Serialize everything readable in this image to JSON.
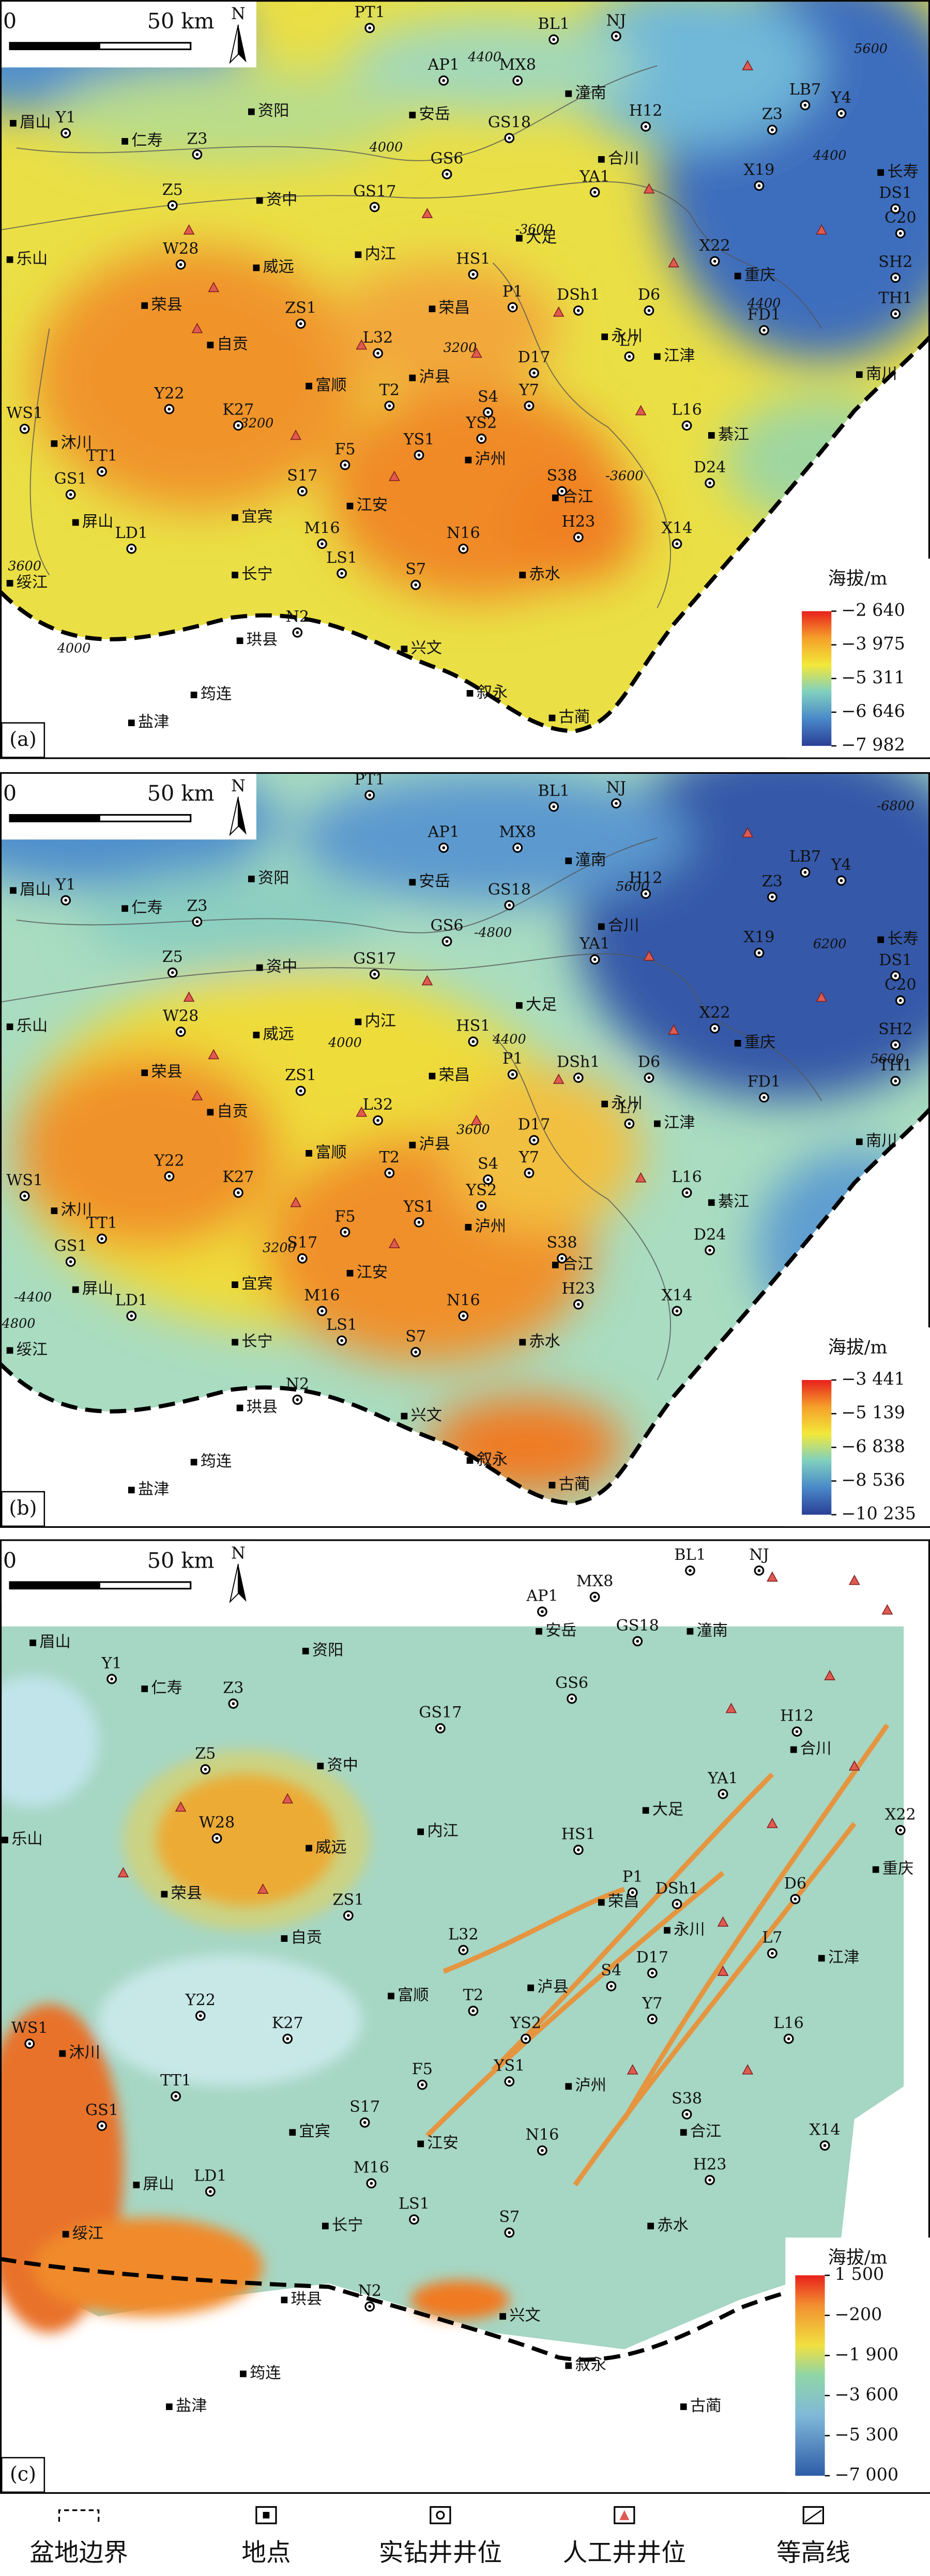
{
  "panels": [
    {
      "label": "(a)",
      "scale_zero": "0",
      "scale_text": "50 km",
      "north": "N",
      "places": [
        "眉山",
        "仁寿",
        "资阳",
        "安岳",
        "潼南",
        "合川",
        "资中",
        "内江",
        "威远",
        "乐山",
        "荣县",
        "自贡",
        "大足",
        "永川",
        "江津",
        "重庆",
        "长寿",
        "南川",
        "荣昌",
        "富顺",
        "泸县",
        "泸州",
        "宜宾",
        "江安",
        "长宁",
        "合江",
        "綦江",
        "赤水",
        "屏山",
        "沐川",
        "绥江",
        "珙县",
        "筠连",
        "盐津",
        "兴文",
        "叙永",
        "古蔺"
      ],
      "wells": [
        "PT1",
        "BL1",
        "NJ",
        "AP1",
        "MX8",
        "GS18",
        "GS6",
        "H12",
        "YA1",
        "LB7",
        "Y4",
        "Z3",
        "X19",
        "DS1",
        "C20",
        "SH2",
        "TH1",
        "FD1",
        "X22",
        "D6",
        "L7",
        "DSh1",
        "P1",
        "HS1",
        "D17",
        "Y7",
        "S4",
        "YS2",
        "YS1",
        "T2",
        "L32",
        "ZS1",
        "K27",
        "Y22",
        "WS1",
        "TT1",
        "GS1",
        "LD1",
        "S17",
        "F5",
        "M16",
        "LS1",
        "S7",
        "N16",
        "N2",
        "S38",
        "H23",
        "X14",
        "D24",
        "L16",
        "Z5",
        "W28",
        "Y1",
        "Z3",
        "GS17"
      ],
      "contours": [
        "4400",
        "4000",
        "-3600",
        "3200",
        "3600",
        "4000",
        "-3600",
        "4400",
        "4400",
        "-3200",
        "5600"
      ],
      "colorbar": {
        "title": "海拔/m",
        "ticks": [
          {
            "value": -2640,
            "label": "−2 640"
          },
          {
            "value": -3975,
            "label": "−3 975"
          },
          {
            "value": -5311,
            "label": "−5 311"
          },
          {
            "value": -6646,
            "label": "−6 646"
          },
          {
            "value": -7982,
            "label": "−7 982"
          }
        ]
      }
    },
    {
      "label": "(b)",
      "scale_zero": "0",
      "scale_text": "50 km",
      "north": "N",
      "places": [
        "眉山",
        "仁寿",
        "资阳",
        "安岳",
        "潼南",
        "合川",
        "资中",
        "内江",
        "威远",
        "乐山",
        "荣县",
        "自贡",
        "大足",
        "永川",
        "江津",
        "重庆",
        "长寿",
        "南川",
        "荣昌",
        "富顺",
        "泸县",
        "泸州",
        "宜宾",
        "江安",
        "长宁",
        "合江",
        "綦江",
        "赤水",
        "屏山",
        "沐川",
        "绥江",
        "珙县",
        "筠连",
        "盐津",
        "兴文",
        "叙永",
        "古蔺"
      ],
      "wells": [
        "PT1",
        "BL1",
        "NJ",
        "AP1",
        "MX8",
        "GS18",
        "GS6",
        "H12",
        "YA1",
        "LB7",
        "Y4",
        "Z3",
        "X19",
        "DS1",
        "C20",
        "SH2",
        "TH1",
        "FD1",
        "X22",
        "D6",
        "L7",
        "DSh1",
        "P1",
        "HS1",
        "D17",
        "Y7",
        "S4",
        "YS2",
        "YS1",
        "T2",
        "L32",
        "ZS1",
        "K27",
        "Y22",
        "WS1",
        "TT1",
        "GS1",
        "LD1",
        "S17",
        "F5",
        "M16",
        "LS1",
        "S7",
        "N16",
        "N2",
        "S38",
        "H23",
        "X14",
        "D24",
        "L16",
        "Z5",
        "W28",
        "Y1",
        "Z3",
        "GS17"
      ],
      "contours": [
        "-4800",
        "4000",
        "4400",
        "3600",
        "3200",
        "-4400",
        "-4800",
        "5600",
        "6200",
        "-6800",
        "5600"
      ],
      "colorbar": {
        "title": "海拔/m",
        "ticks": [
          {
            "value": -3441,
            "label": "−3 441"
          },
          {
            "value": -5139,
            "label": "−5 139"
          },
          {
            "value": -6838,
            "label": "−6 838"
          },
          {
            "value": -8536,
            "label": "−8 536"
          },
          {
            "value": -10235,
            "label": "−10 235"
          }
        ]
      }
    },
    {
      "label": "(c)",
      "scale_zero": "0",
      "scale_text": "50 km",
      "north": "N",
      "places": [
        "眉山",
        "仁寿",
        "资阳",
        "安岳",
        "潼南",
        "合川",
        "资中",
        "乐山",
        "威远",
        "内江",
        "大足",
        "重庆",
        "荣县",
        "自贡",
        "荣昌",
        "永川",
        "江津",
        "富顺",
        "泸县",
        "沐川",
        "泸州",
        "宜宾",
        "合江",
        "江安",
        "屏山",
        "长宁",
        "赤水",
        "绥江",
        "珙县",
        "兴文",
        "叙永",
        "筠连",
        "盐津",
        "古蔺"
      ],
      "wells": [
        "BL1",
        "NJ",
        "AP1",
        "MX8",
        "GS18",
        "GS6",
        "H12",
        "YA1",
        "Y1",
        "Z3",
        "GS17",
        "Z5",
        "W28",
        "HS1",
        "P1",
        "DSh1",
        "D6",
        "X22",
        "ZS1",
        "L32",
        "D17",
        "L7",
        "Y22",
        "K27",
        "T2",
        "S4",
        "Y7",
        "YS2",
        "WS1",
        "L16",
        "TT1",
        "F5",
        "YS1",
        "GS1",
        "S17",
        "S38",
        "X14",
        "N16",
        "LD1",
        "H23",
        "M16",
        "LS1",
        "S7",
        "N2"
      ],
      "contours": [],
      "colorbar": {
        "title": "海拔/m",
        "ticks": [
          {
            "value": 1500,
            "label": "1 500"
          },
          {
            "value": -200,
            "label": "−200"
          },
          {
            "value": -1900,
            "label": "−1 900"
          },
          {
            "value": -3600,
            "label": "−3 600"
          },
          {
            "value": -5300,
            "label": "−5 300"
          },
          {
            "value": -7000,
            "label": "−7 000"
          }
        ]
      }
    }
  ],
  "legend": [
    "盆地边界",
    "地点",
    "实钻井井位",
    "人工井井位",
    "等高线"
  ]
}
